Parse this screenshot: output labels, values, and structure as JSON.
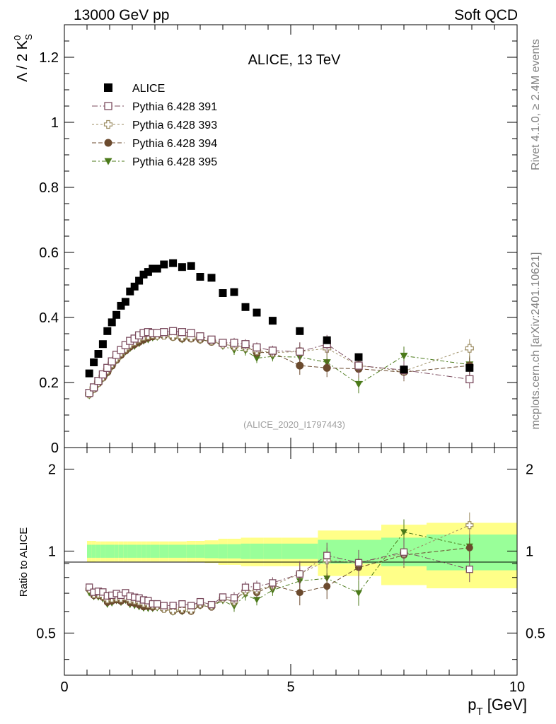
{
  "header": {
    "left": "13000 GeV pp",
    "right": "Soft QCD"
  },
  "side_text": {
    "rivet": "Rivet 4.1.0, ≥ 2.4M events",
    "mcplots": "mcplots.cern.ch [arXiv:2401.10621]"
  },
  "chart_data": {
    "type": "scatter",
    "title": "ALICE, 13 TeV",
    "analysis_id": "(ALICE_2020_I1797443)",
    "ylabel_main": "Λ / 2 K",
    "ylabel_main_sup": "0",
    "ylabel_main_sub": "S",
    "ylabel_ratio": "Ratio to ALICE",
    "xlabel": "p",
    "xlabel_sub": "T",
    "xlabel_unit": " [GeV]",
    "xlim": [
      0,
      10
    ],
    "ylim_main": [
      0,
      1.3
    ],
    "ylim_ratio": [
      0.35,
      2.4
    ],
    "x_ticks": [
      "0",
      "5",
      "10"
    ],
    "y_ticks_main": [
      "0",
      "0.2",
      "0.4",
      "0.6",
      "0.8",
      "1",
      "1.2"
    ],
    "y_ticks_ratio": [
      "0.5",
      "1",
      "2"
    ],
    "x": [
      0.55,
      0.65,
      0.75,
      0.85,
      0.95,
      1.05,
      1.15,
      1.25,
      1.35,
      1.45,
      1.55,
      1.65,
      1.75,
      1.85,
      1.95,
      2.05,
      2.2,
      2.4,
      2.6,
      2.8,
      3.0,
      3.25,
      3.5,
      3.75,
      4.0,
      4.25,
      4.6,
      5.2,
      5.8,
      6.5,
      7.5,
      8.95
    ],
    "bin_edges": [
      0.5,
      0.6,
      0.7,
      0.8,
      0.9,
      1.0,
      1.1,
      1.2,
      1.3,
      1.4,
      1.5,
      1.6,
      1.7,
      1.8,
      1.9,
      2.0,
      2.1,
      2.3,
      2.5,
      2.7,
      2.9,
      3.1,
      3.4,
      3.6,
      3.9,
      4.1,
      4.4,
      4.8,
      5.6,
      6.0,
      7.0,
      8.0,
      10.0
    ],
    "series": [
      {
        "name": "ALICE",
        "color": "#000000",
        "marker": "square-filled",
        "values": [
          0.228,
          0.262,
          0.288,
          0.318,
          0.358,
          0.385,
          0.408,
          0.436,
          0.448,
          0.48,
          0.495,
          0.513,
          0.532,
          0.54,
          0.55,
          0.55,
          0.563,
          0.567,
          0.555,
          0.558,
          0.525,
          0.522,
          0.475,
          0.478,
          0.432,
          0.415,
          0.39,
          0.358,
          0.33,
          0.278,
          0.24,
          0.245
        ]
      },
      {
        "name": "Pythia 6.428 391",
        "color": "#7b4b5e",
        "marker": "square-open",
        "values": [
          0.168,
          0.185,
          0.205,
          0.225,
          0.245,
          0.265,
          0.285,
          0.3,
          0.315,
          0.328,
          0.335,
          0.345,
          0.352,
          0.355,
          0.352,
          0.352,
          0.355,
          0.358,
          0.355,
          0.352,
          0.342,
          0.332,
          0.322,
          0.322,
          0.318,
          0.308,
          0.298,
          0.295,
          0.318,
          0.252,
          0.238,
          0.21
        ]
      },
      {
        "name": "Pythia 6.428 393",
        "color": "#9c8d63",
        "marker": "cross-open",
        "values": [
          0.165,
          0.182,
          0.2,
          0.218,
          0.238,
          0.258,
          0.275,
          0.292,
          0.305,
          0.318,
          0.326,
          0.335,
          0.342,
          0.345,
          0.348,
          0.345,
          0.345,
          0.342,
          0.34,
          0.338,
          0.335,
          0.328,
          0.318,
          0.312,
          0.308,
          0.298,
          0.292,
          0.295,
          0.305,
          0.252,
          0.235,
          0.305
        ]
      },
      {
        "name": "Pythia 6.428 394",
        "color": "#6b4a2e",
        "marker": "circle-filled",
        "values": [
          0.165,
          0.18,
          0.198,
          0.215,
          0.232,
          0.252,
          0.27,
          0.285,
          0.298,
          0.31,
          0.318,
          0.325,
          0.332,
          0.338,
          0.342,
          0.345,
          0.345,
          0.34,
          0.335,
          0.335,
          0.332,
          0.325,
          0.318,
          0.312,
          0.312,
          0.292,
          0.292,
          0.252,
          0.245,
          0.242,
          0.232,
          0.252
        ]
      },
      {
        "name": "Pythia 6.428 395",
        "color": "#4b7a1a",
        "marker": "triangle-down-filled",
        "values": [
          0.16,
          0.178,
          0.195,
          0.212,
          0.228,
          0.248,
          0.268,
          0.282,
          0.295,
          0.305,
          0.312,
          0.32,
          0.328,
          0.332,
          0.338,
          0.34,
          0.345,
          0.338,
          0.332,
          0.335,
          0.33,
          0.328,
          0.312,
          0.3,
          0.298,
          0.275,
          0.28,
          0.278,
          0.262,
          0.195,
          0.282,
          0.255
        ]
      }
    ],
    "band_inner": [
      0.055,
      0.055,
      0.055,
      0.055,
      0.055,
      0.055,
      0.055,
      0.055,
      0.055,
      0.055,
      0.055,
      0.055,
      0.055,
      0.055,
      0.055,
      0.055,
      0.055,
      0.055,
      0.055,
      0.055,
      0.055,
      0.058,
      0.06,
      0.06,
      0.065,
      0.065,
      0.065,
      0.065,
      0.1,
      0.1,
      0.12,
      0.15
    ],
    "band_outer": [
      0.09,
      0.09,
      0.085,
      0.085,
      0.085,
      0.085,
      0.085,
      0.085,
      0.085,
      0.085,
      0.085,
      0.085,
      0.085,
      0.085,
      0.085,
      0.085,
      0.085,
      0.085,
      0.085,
      0.09,
      0.09,
      0.095,
      0.11,
      0.11,
      0.12,
      0.12,
      0.12,
      0.12,
      0.19,
      0.19,
      0.25,
      0.27
    ]
  }
}
